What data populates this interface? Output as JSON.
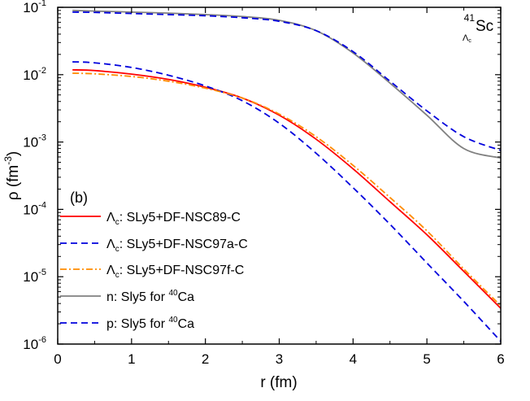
{
  "chart_data": {
    "type": "line",
    "panel_label": "(b)",
    "annotation": {
      "mass": "41",
      "subscript": "Λc",
      "element": "Sc"
    },
    "xlabel": "r (fm)",
    "ylabel": {
      "base": "ρ (fm",
      "sup": "-3",
      "close": ")"
    },
    "xlim": [
      0,
      6
    ],
    "ylim": [
      1e-06,
      0.1
    ],
    "yscale": "log",
    "xticks": [
      "0",
      "1",
      "2",
      "3",
      "4",
      "5",
      "6"
    ],
    "yticks": [
      {
        "value": 0.1,
        "base": "10",
        "exp": "-1"
      },
      {
        "value": 0.01,
        "base": "10",
        "exp": "-2"
      },
      {
        "value": 0.001,
        "base": "10",
        "exp": "-3"
      },
      {
        "value": 0.0001,
        "base": "10",
        "exp": "-4"
      },
      {
        "value": 1e-05,
        "base": "10",
        "exp": "-5"
      },
      {
        "value": 1e-06,
        "base": "10",
        "exp": "-6"
      }
    ],
    "legend_position": "lower-left",
    "series": [
      {
        "legend": {
          "pre": "",
          "sub_base": "Λ",
          "sub": "c",
          "text": ": SLy5+DF-NSC89-C",
          "sup": "",
          "post": ""
        },
        "color": "#ff0000",
        "dash": "solid",
        "x": [
          0.2,
          0.5,
          1.0,
          1.5,
          2.0,
          2.5,
          3.0,
          3.5,
          4.0,
          4.5,
          5.0,
          5.5,
          6.0
        ],
        "y": [
          0.0118,
          0.0115,
          0.0102,
          0.0085,
          0.0065,
          0.0045,
          0.0025,
          0.0011,
          0.0004,
          0.00013,
          4.2e-05,
          1.2e-05,
          3.4e-06
        ]
      },
      {
        "legend": {
          "pre": "",
          "sub_base": "Λ",
          "sub": "c",
          "text": ": SLy5+DF-NSC97a-C",
          "sup": "",
          "post": ""
        },
        "color": "#0000dd",
        "dash": "dashed",
        "x": [
          0.2,
          0.5,
          1.0,
          1.5,
          2.0,
          2.5,
          3.0,
          3.5,
          4.0,
          4.5,
          5.0,
          5.5,
          6.0
        ],
        "y": [
          0.0155,
          0.015,
          0.0128,
          0.0098,
          0.0068,
          0.0041,
          0.0019,
          0.00068,
          0.00021,
          6e-05,
          1.6e-05,
          4.3e-06,
          1.1e-06
        ]
      },
      {
        "legend": {
          "pre": "",
          "sub_base": "Λ",
          "sub": "c",
          "text": ": SLy5+DF-NSC97f-C",
          "sup": "",
          "post": ""
        },
        "color": "#ff8c00",
        "dash": "dashdot",
        "x": [
          0.2,
          0.5,
          1.0,
          1.5,
          2.0,
          2.5,
          3.0,
          3.5,
          4.0,
          4.5,
          5.0,
          5.5,
          6.0
        ],
        "y": [
          0.0105,
          0.0103,
          0.0094,
          0.008,
          0.0063,
          0.0045,
          0.0026,
          0.0012,
          0.00045,
          0.00015,
          4.8e-05,
          1.3e-05,
          3.7e-06
        ]
      },
      {
        "legend": {
          "pre": "n: Sly5 for ",
          "sub_base": "",
          "sub": "",
          "text": "",
          "sup": "40",
          "post": "Ca"
        },
        "color": "#808080",
        "dash": "solid",
        "x": [
          0.2,
          0.5,
          1.0,
          1.5,
          2.0,
          2.5,
          3.0,
          3.5,
          4.0,
          4.5,
          5.0,
          5.5,
          6.0
        ],
        "y": [
          0.09,
          0.088,
          0.085,
          0.082,
          0.078,
          0.073,
          0.064,
          0.045,
          0.021,
          0.0075,
          0.0025,
          0.0008,
          0.00058
        ]
      },
      {
        "legend": {
          "pre": "p: Sly5 for ",
          "sub_base": "",
          "sub": "",
          "text": "",
          "sup": "40",
          "post": "Ca"
        },
        "color": "#0000dd",
        "dash": "dashed",
        "x": [
          0.2,
          0.5,
          1.0,
          1.5,
          2.0,
          2.5,
          3.0,
          3.5,
          4.0,
          4.5,
          5.0,
          5.5,
          6.0
        ],
        "y": [
          0.085,
          0.084,
          0.081,
          0.078,
          0.075,
          0.07,
          0.062,
          0.045,
          0.022,
          0.008,
          0.0029,
          0.0012,
          0.00075
        ]
      }
    ]
  }
}
